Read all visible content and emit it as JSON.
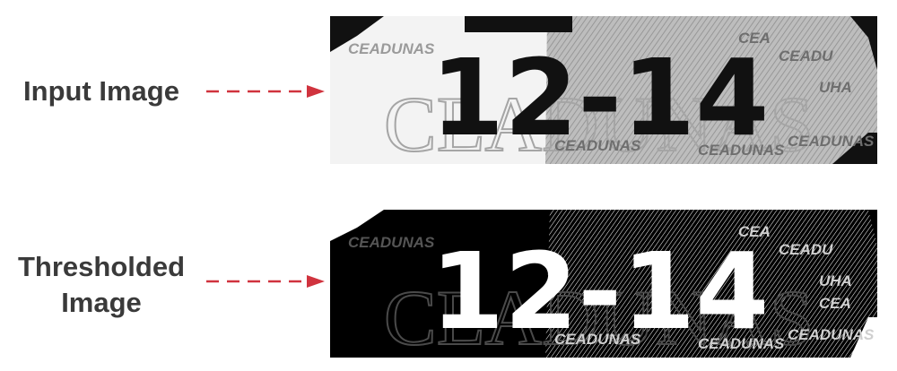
{
  "labels": {
    "input": "Input Image",
    "thresholded_line1": "Thresholded",
    "thresholded_line2": "Image"
  },
  "plate": {
    "number": "12-14",
    "watermark_small": "CEADUNAS",
    "watermark_large": "CEADUNAS",
    "watermark_fragments": [
      "CEA",
      "CEADU",
      "UHA",
      "CEADUNAS",
      "CEADUNAS",
      "CEADUNAS",
      "CEA",
      "CEADUNAS"
    ]
  },
  "colors": {
    "label_text": "#3a3a3a",
    "arrow": "#d0333e",
    "plate_light": "#f2f2f2",
    "plate_gray": "#b8b8b8",
    "ink": "#111111"
  },
  "icons": {
    "arrow": "dashed-right-arrow-icon"
  }
}
